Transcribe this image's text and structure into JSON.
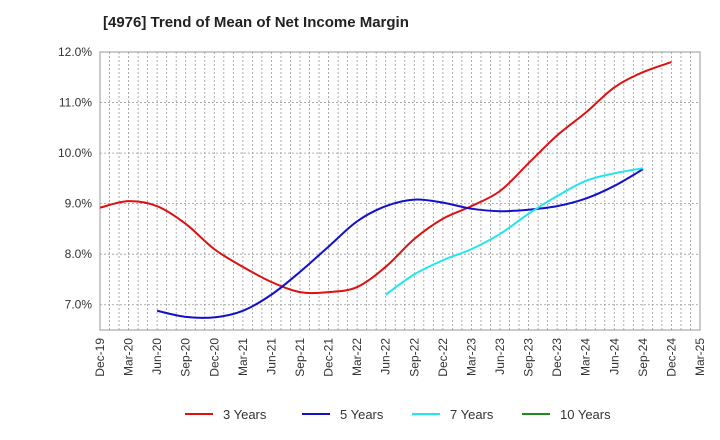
{
  "chart_data": {
    "type": "line",
    "title": "[4976]  Trend of Mean of Net Income Margin",
    "xlabel": "",
    "ylabel": "",
    "ylim": [
      6.5,
      12.0
    ],
    "y_ticks": [
      "12.0%",
      "11.0%",
      "10.0%",
      "9.0%",
      "8.0%",
      "7.0%"
    ],
    "y_tick_values": [
      12.0,
      11.0,
      10.0,
      9.0,
      8.0,
      7.0
    ],
    "categories": [
      "Dec-19",
      "Mar-20",
      "Jun-20",
      "Sep-20",
      "Dec-20",
      "Mar-21",
      "Jun-21",
      "Sep-21",
      "Dec-21",
      "Mar-22",
      "Jun-22",
      "Sep-22",
      "Dec-22",
      "Mar-23",
      "Jun-23",
      "Sep-23",
      "Dec-23",
      "Mar-24",
      "Jun-24",
      "Sep-24",
      "Dec-24",
      "Mar-25"
    ],
    "grid": true,
    "legend_position": "bottom",
    "series": [
      {
        "name": "3 Years",
        "color": "#dd1111",
        "values": [
          8.92,
          9.05,
          8.95,
          8.6,
          8.1,
          7.75,
          7.45,
          7.25,
          7.25,
          7.35,
          7.75,
          8.3,
          8.7,
          8.95,
          9.25,
          9.8,
          10.35,
          10.8,
          11.3,
          11.6,
          11.8,
          null
        ]
      },
      {
        "name": "5 Years",
        "color": "#1111cc",
        "values": [
          null,
          null,
          6.88,
          6.76,
          6.75,
          6.88,
          7.2,
          7.65,
          8.15,
          8.65,
          8.95,
          9.08,
          9.02,
          8.9,
          8.85,
          8.88,
          8.95,
          9.1,
          9.35,
          9.68,
          null,
          null
        ]
      },
      {
        "name": "7 Years",
        "color": "#22e6ee",
        "values": [
          null,
          null,
          null,
          null,
          null,
          null,
          null,
          null,
          null,
          null,
          7.2,
          7.6,
          7.88,
          8.1,
          8.4,
          8.8,
          9.15,
          9.45,
          9.6,
          9.7,
          null,
          null
        ]
      },
      {
        "name": "10 Years",
        "color": "#228822",
        "values": [
          null,
          null,
          null,
          null,
          null,
          null,
          null,
          null,
          null,
          null,
          null,
          null,
          null,
          null,
          null,
          null,
          null,
          null,
          null,
          null,
          null,
          null
        ]
      }
    ]
  }
}
